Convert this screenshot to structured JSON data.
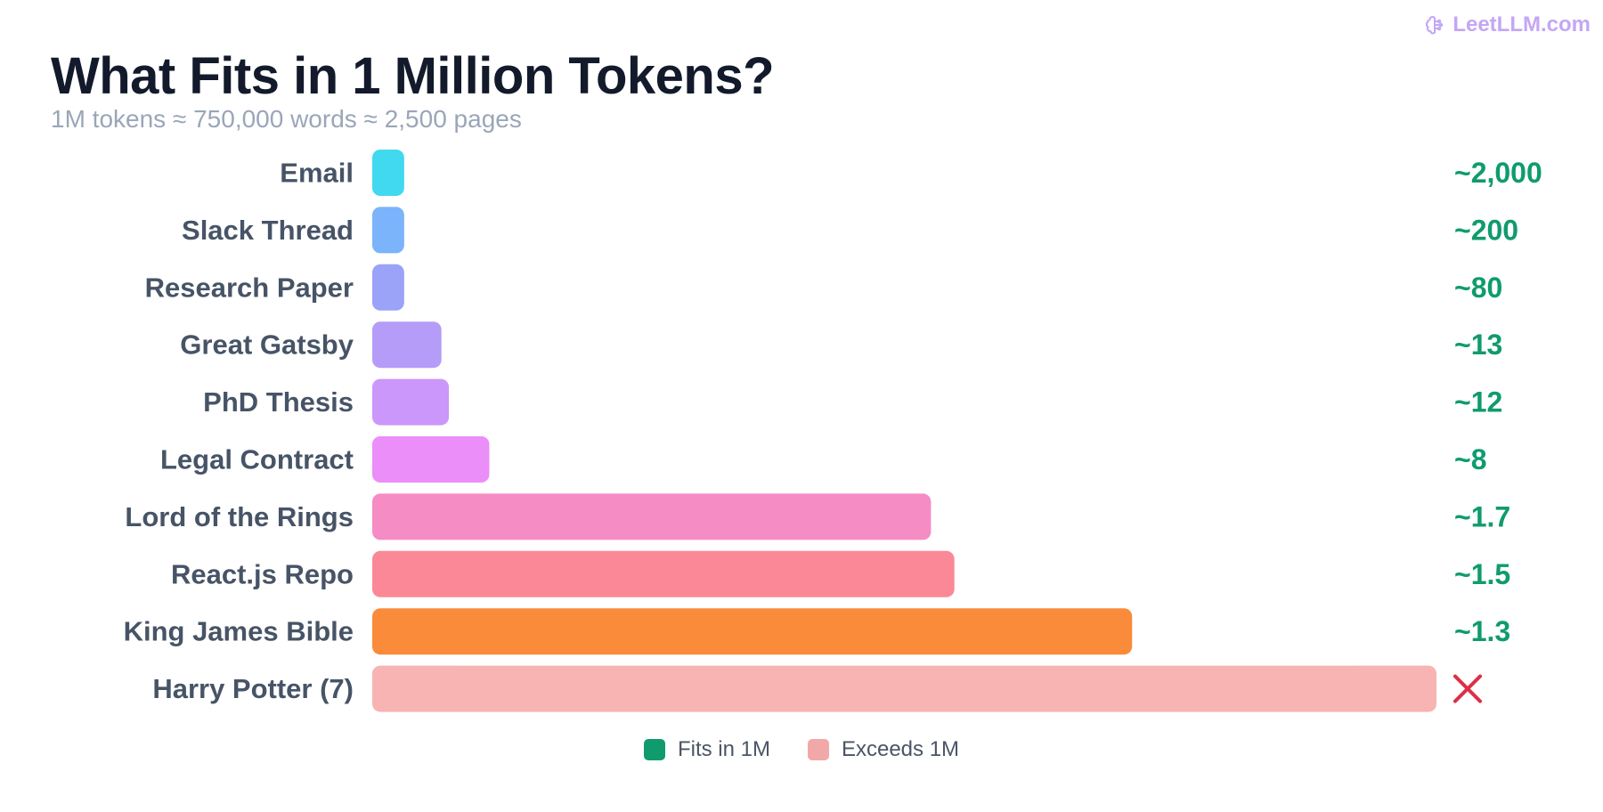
{
  "brand": {
    "name": "LeetLLM.com",
    "icon": "brain-icon",
    "color": "#c4a6f5"
  },
  "title": "What Fits in 1 Million Tokens?",
  "subtitle": "1M tokens ≈ 750,000 words ≈ 2,500 pages",
  "legend": [
    {
      "label": "Fits in 1M",
      "color": "#0f9b6e"
    },
    {
      "label": "Exceeds 1M",
      "color": "#f2a8a8"
    }
  ],
  "chart_data": {
    "type": "bar",
    "orientation": "horizontal",
    "categories": [
      "Email",
      "Slack Thread",
      "Research Paper",
      "Great Gatsby",
      "PhD Thesis",
      "Legal Contract",
      "Lord of the Rings",
      "React.js Repo",
      "King James Bible",
      "Harry Potter (7)"
    ],
    "values": [
      30,
      30,
      30,
      65,
      72,
      110,
      525,
      547,
      714,
      1000
    ],
    "value_units": "relative bar length (Harry Potter (7) = 1000)",
    "data_labels": [
      "~2,000",
      "~200",
      "~80",
      "~13",
      "~12",
      "~8",
      "~1.7",
      "~1.5",
      "~1.3",
      "✕"
    ],
    "status": [
      "fits",
      "fits",
      "fits",
      "fits",
      "fits",
      "fits",
      "fits",
      "fits",
      "fits",
      "exceeds"
    ],
    "colors": [
      "#40d9ef",
      "#7bb4fb",
      "#9ba3f8",
      "#b49cf8",
      "#cb97fa",
      "#ec8ef9",
      "#f58cc4",
      "#fb8896",
      "#f98b3a",
      "#f7b4b2"
    ],
    "label_color": "#0f9b6e",
    "exceed_color": "#dc2f45",
    "legend_position": "bottom-center",
    "grid": false
  }
}
